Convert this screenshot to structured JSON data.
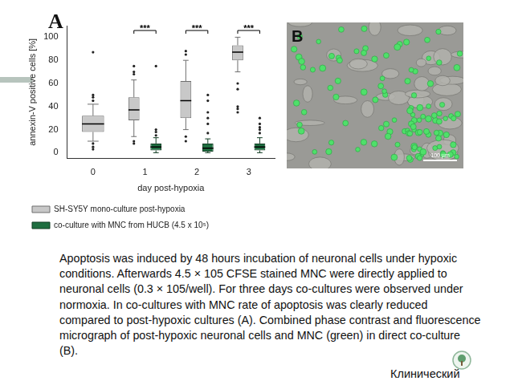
{
  "chart_data": {
    "type": "boxplot",
    "x_label": "day post-hypoxia",
    "y_label": "annexin-V positive cells [%]",
    "categories": [
      "0",
      "1",
      "2",
      "3"
    ],
    "series": [
      {
        "name": "SH-SY5Y mono-culture post-hypoxia",
        "color": "#c8c8c8",
        "whisker_low": [
          10,
          14,
          20,
          70
        ],
        "q1": [
          18,
          28,
          30,
          80
        ],
        "median": [
          25,
          37,
          45,
          87
        ],
        "q3": [
          32,
          48,
          62,
          93
        ],
        "whisker_high": [
          42,
          63,
          80,
          100
        ],
        "outliers": [
          [
            87,
            50,
            48,
            45,
            8,
            5,
            3
          ],
          [
            75,
            70,
            68,
            10,
            8
          ],
          [
            88,
            85,
            14,
            10
          ],
          [
            60,
            55,
            40,
            38,
            35
          ]
        ]
      },
      {
        "name": "co-culture with MNC from HUCB (4.5 x 10⁵)",
        "color": "#1e6e40",
        "whisker_low": [
          null,
          0,
          0,
          0
        ],
        "q1": [
          null,
          2,
          1,
          2
        ],
        "median": [
          null,
          5,
          4,
          5
        ],
        "q3": [
          null,
          8,
          8,
          8
        ],
        "whisker_high": [
          null,
          13,
          12,
          13
        ],
        "outliers": [
          [],
          [
            75,
            20,
            18,
            15
          ],
          [
            50,
            45,
            35,
            30,
            25,
            17
          ],
          [
            30,
            25,
            22,
            20,
            17
          ]
        ]
      }
    ],
    "annotations": [
      {
        "category": "1",
        "text": "***"
      },
      {
        "category": "2",
        "text": "***"
      },
      {
        "category": "3",
        "text": "***"
      }
    ],
    "ylim": [
      -5,
      110
    ],
    "yticks": [
      0,
      20,
      40,
      60,
      80,
      100
    ],
    "grid": false,
    "legend": "bottom"
  },
  "panel_a_label": "A",
  "panel_b": {
    "label": "B",
    "scale_bar": "100 µm"
  },
  "caption": [
    "Apoptosis was induced by 48 hours incubation of neuronal cells under hypoxic",
    "conditions. Afterwards 4.5 × 105 CFSE stained MNC were directly applied to",
    "neuronal cells (0.3 × 105/well). For three days co-cultures were observed under",
    "normoxia. In co-cultures with MNC rate of apoptosis was clearly reduced",
    "compared to post-hypoxic cultures (A). Combined phase contrast and fluorescence",
    "micrograph of post-hypoxic neuronal cells and MNC (green) in direct co-culture",
    "(B)."
  ],
  "footer": "Клинический"
}
